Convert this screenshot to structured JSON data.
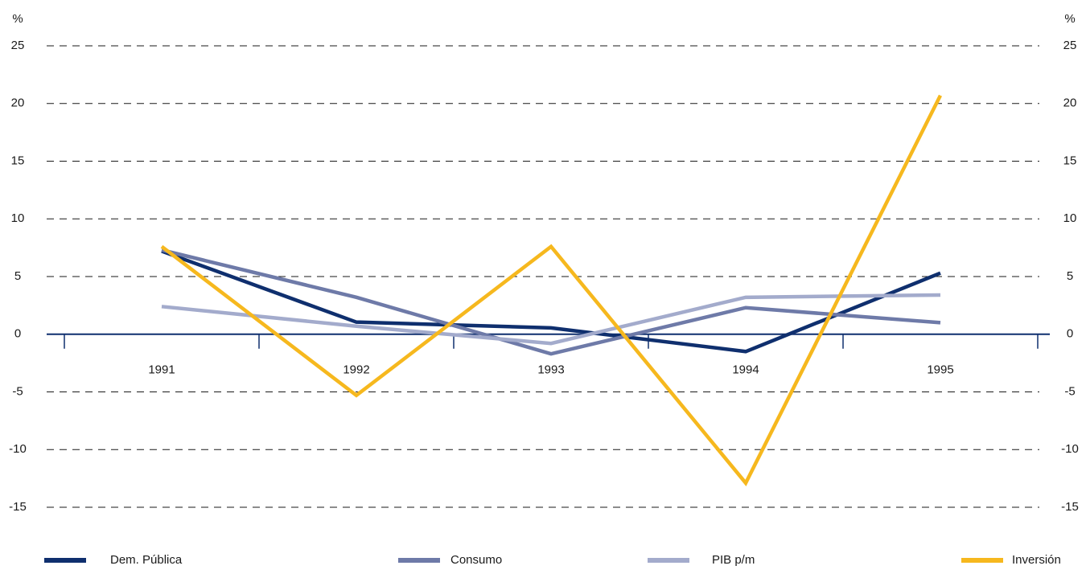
{
  "chart_data": {
    "type": "line",
    "ylabel": "%",
    "y2label": "%",
    "categories": [
      "1991",
      "1992",
      "1993",
      "1994",
      "1995"
    ],
    "series": [
      {
        "name": "Dem. Pública",
        "color": "#0f2f6e",
        "values": [
          7.2,
          1.05,
          0.55,
          -1.5,
          5.3
        ]
      },
      {
        "name": "Consumo",
        "color": "#6e7aa8",
        "values": [
          7.3,
          3.2,
          -1.7,
          2.3,
          1.0
        ]
      },
      {
        "name": "PIB p/m",
        "color": "#a3abcc",
        "values": [
          2.4,
          0.7,
          -0.8,
          3.2,
          3.4
        ]
      },
      {
        "name": "Inversión",
        "color": "#f6b81e",
        "values": [
          7.6,
          -5.3,
          7.6,
          -12.9,
          20.7
        ]
      }
    ],
    "ylim": [
      -15,
      25
    ],
    "yticks": [
      -15,
      -10,
      -5,
      0,
      5,
      10,
      15,
      20,
      25
    ],
    "y2lim": [
      -15,
      25
    ],
    "y2ticks": [
      -15,
      -10,
      -5,
      0,
      5,
      10,
      15,
      20,
      25
    ],
    "grid": true,
    "legend": "bottom"
  }
}
